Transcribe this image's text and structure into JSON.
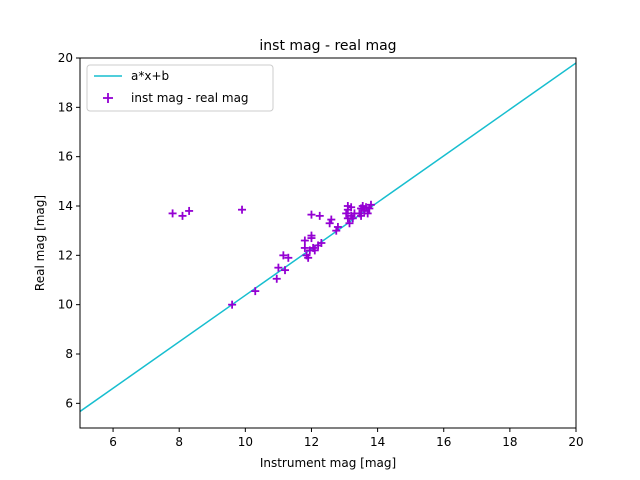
{
  "chart_data": {
    "type": "scatter",
    "title": "inst mag - real mag",
    "xlabel": "Instrument mag [mag]",
    "ylabel": "Real mag [mag]",
    "xlim": [
      5,
      20
    ],
    "ylim": [
      5,
      20
    ],
    "xticks": [
      6,
      8,
      10,
      12,
      14,
      16,
      18,
      20
    ],
    "yticks": [
      6,
      8,
      10,
      12,
      14,
      16,
      18,
      20
    ],
    "grid": false,
    "legend_position": "top-left",
    "series": [
      {
        "name": "a*x+b",
        "kind": "line",
        "color": "#17becf",
        "x": [
          5,
          20
        ],
        "y": [
          5.67,
          19.8
        ]
      },
      {
        "name": "inst mag - real mag",
        "kind": "scatter",
        "marker": "+",
        "color": "#9400d3",
        "x": [
          7.8,
          8.1,
          8.3,
          9.9,
          9.6,
          10.3,
          10.95,
          11.0,
          11.15,
          11.2,
          11.3,
          11.8,
          11.8,
          11.85,
          11.9,
          11.95,
          12.0,
          12.0,
          12.0,
          12.05,
          12.1,
          12.2,
          12.25,
          12.3,
          12.55,
          12.6,
          12.75,
          12.8,
          13.05,
          13.1,
          13.1,
          13.1,
          13.15,
          13.2,
          13.2,
          13.25,
          13.3,
          13.45,
          13.5,
          13.5,
          13.55,
          13.6,
          13.65,
          13.7,
          13.75,
          13.8
        ],
        "y": [
          13.7,
          13.6,
          13.8,
          13.85,
          10.0,
          10.55,
          11.05,
          11.5,
          12.0,
          11.4,
          11.9,
          12.6,
          12.3,
          12.0,
          11.9,
          12.2,
          13.65,
          12.8,
          12.7,
          12.3,
          12.2,
          12.4,
          13.6,
          12.5,
          13.3,
          13.45,
          13.0,
          13.15,
          13.7,
          14.0,
          13.85,
          13.5,
          13.3,
          13.6,
          13.95,
          13.5,
          13.7,
          13.7,
          13.9,
          13.6,
          14.0,
          13.8,
          13.95,
          13.7,
          13.9,
          14.05
        ]
      }
    ]
  }
}
